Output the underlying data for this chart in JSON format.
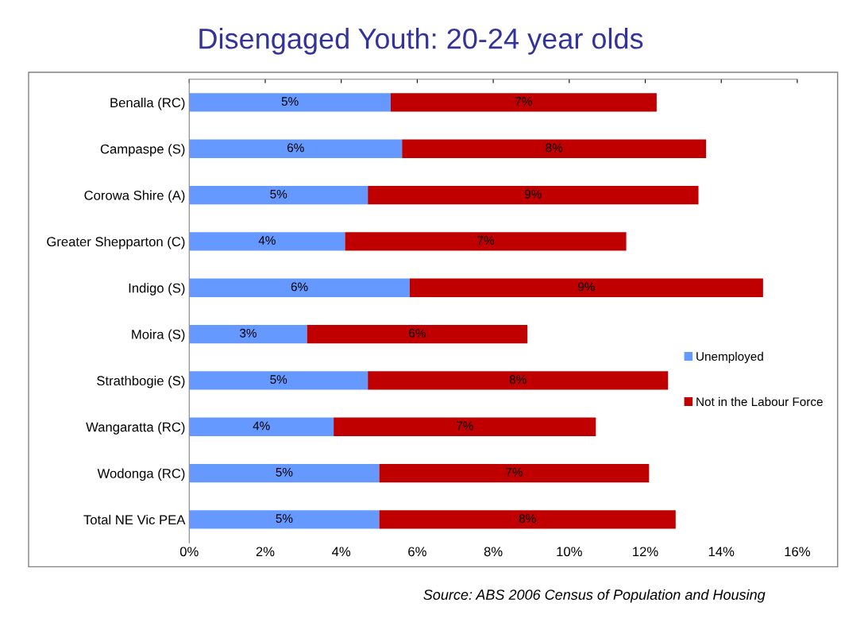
{
  "chart_data": {
    "type": "bar",
    "orientation": "horizontal",
    "stacked": true,
    "title": "Disengaged Youth: 20-24 year olds",
    "categories": [
      "Benalla (RC)",
      "Campaspe (S)",
      "Corowa Shire (A)",
      "Greater Shepparton (C)",
      "Indigo (S)",
      "Moira (S)",
      "Strathbogie (S)",
      "Wangaratta (RC)",
      "Wodonga (RC)",
      "Total NE Vic PEA"
    ],
    "series": [
      {
        "name": "Unemployed",
        "color": "#6699ff",
        "values": [
          5.3,
          5.6,
          4.7,
          4.1,
          5.8,
          3.1,
          4.7,
          3.8,
          5.0,
          5.0
        ],
        "value_labels": [
          "5%",
          "6%",
          "5%",
          "4%",
          "6%",
          "3%",
          "5%",
          "4%",
          "5%",
          "5%"
        ]
      },
      {
        "name": "Not in the Labour Force",
        "color": "#c00000",
        "values": [
          7.0,
          8.0,
          8.7,
          7.4,
          9.3,
          5.8,
          7.9,
          6.9,
          7.1,
          7.8
        ],
        "value_labels": [
          "7%",
          "8%",
          "9%",
          "7%",
          "9%",
          "6%",
          "8%",
          "7%",
          "7%",
          "8%"
        ]
      }
    ],
    "xlim": [
      0,
      16
    ],
    "xticks": [
      {
        "value": 0,
        "label": "0%"
      },
      {
        "value": 2,
        "label": "2%"
      },
      {
        "value": 4,
        "label": "4%"
      },
      {
        "value": 6,
        "label": "6%"
      },
      {
        "value": 8,
        "label": "8%"
      },
      {
        "value": 10,
        "label": "10%"
      },
      {
        "value": 12,
        "label": "12%"
      },
      {
        "value": 14,
        "label": "14%"
      },
      {
        "value": 16,
        "label": "16%"
      }
    ],
    "legend": "right",
    "grid": false,
    "annotations": [
      "Source: ABS 2006 Census of Population and Housing"
    ]
  }
}
